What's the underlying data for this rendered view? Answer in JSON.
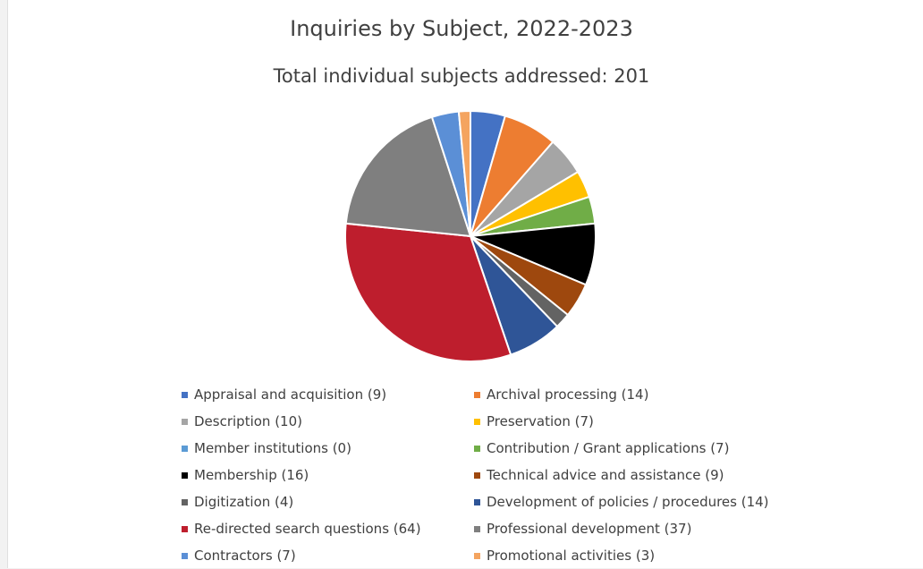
{
  "chart_data": {
    "type": "pie",
    "title": "Inquiries by Subject, 2022-2023",
    "subtitle": "Total individual subjects addressed: 201",
    "legend_position": "bottom",
    "slices": [
      {
        "label": "Appraisal and acquisition (9)",
        "value": 9,
        "color": "#4472C4"
      },
      {
        "label": "Archival processing (14)",
        "value": 14,
        "color": "#ED7D31"
      },
      {
        "label": "Description (10)",
        "value": 10,
        "color": "#A5A5A5"
      },
      {
        "label": "Preservation (7)",
        "value": 7,
        "color": "#FFC000"
      },
      {
        "label": "Member institutions (0)",
        "value": 0,
        "color": "#5B9BD5"
      },
      {
        "label": "Contribution / Grant applications (7)",
        "value": 7,
        "color": "#70AD47"
      },
      {
        "label": "Membership (16)",
        "value": 16,
        "color": "#000000"
      },
      {
        "label": "Technical advice and assistance (9)",
        "value": 9,
        "color": "#9E480E"
      },
      {
        "label": "Digitization (4)",
        "value": 4,
        "color": "#636363"
      },
      {
        "label": "Development of policies / procedures (14)",
        "value": 14,
        "color": "#2F5597"
      },
      {
        "label": "Re-directed search questions (64)",
        "value": 64,
        "color": "#BE1E2D"
      },
      {
        "label": "Professional development (37)",
        "value": 37,
        "color": "#7F7F7F"
      },
      {
        "label": "Contractors (7)",
        "value": 7,
        "color": "#5B8FD6"
      },
      {
        "label": "Promotional activities (3)",
        "value": 3,
        "color": "#F4A460"
      }
    ]
  }
}
